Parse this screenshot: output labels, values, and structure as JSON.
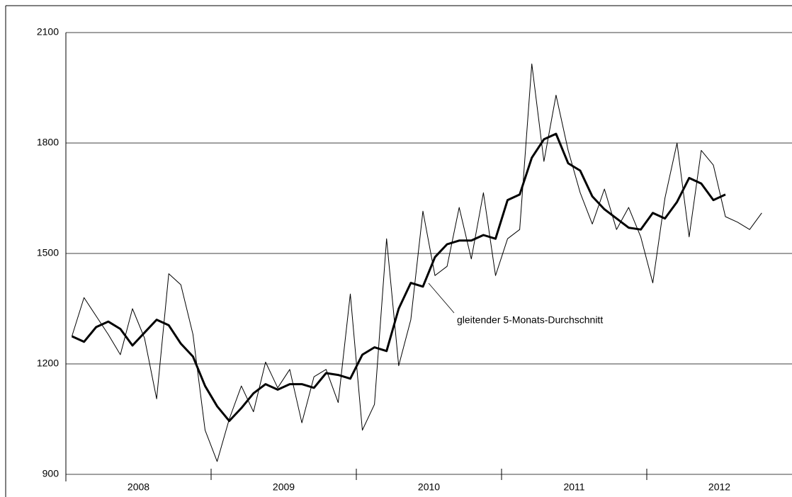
{
  "chart_data": {
    "type": "line",
    "ylim": [
      900,
      2100
    ],
    "yticks": [
      900,
      1200,
      1500,
      1800,
      2100
    ],
    "grid": true,
    "months_per_group": 12,
    "groups": [
      "2008",
      "2009",
      "2010",
      "2011",
      "2012"
    ],
    "annotation": "gleitender 5-Monats-Durchschnitt",
    "series": [
      {
        "color": "#000000",
        "width": 1,
        "values": [
          1275,
          1380,
          1330,
          1280,
          1225,
          1350,
          1270,
          1105,
          1445,
          1415,
          1280,
          1020,
          935,
          1050,
          1140,
          1070,
          1205,
          1135,
          1185,
          1040,
          1165,
          1185,
          1095,
          1390,
          1020,
          1090,
          1540,
          1195,
          1320,
          1615,
          1440,
          1465,
          1625,
          1485,
          1665,
          1440,
          1540,
          1565,
          2015,
          1750,
          1930,
          1780,
          1665,
          1580,
          1675,
          1565,
          1625,
          1545,
          1420,
          1650,
          1800,
          1545,
          1780,
          1740,
          1600,
          1585,
          1565,
          1610
        ]
      },
      {
        "color": "#000000",
        "width": 3,
        "values": [
          1275,
          1260,
          1300,
          1315,
          1295,
          1250,
          1285,
          1320,
          1305,
          1255,
          1220,
          1140,
          1085,
          1045,
          1080,
          1120,
          1145,
          1130,
          1145,
          1145,
          1135,
          1175,
          1170,
          1160,
          1225,
          1245,
          1235,
          1350,
          1420,
          1410,
          1490,
          1525,
          1535,
          1535,
          1550,
          1540,
          1645,
          1660,
          1760,
          1810,
          1825,
          1745,
          1725,
          1655,
          1620,
          1595,
          1570,
          1565,
          1610,
          1595,
          1640,
          1705,
          1690,
          1645,
          1660
        ]
      }
    ]
  }
}
